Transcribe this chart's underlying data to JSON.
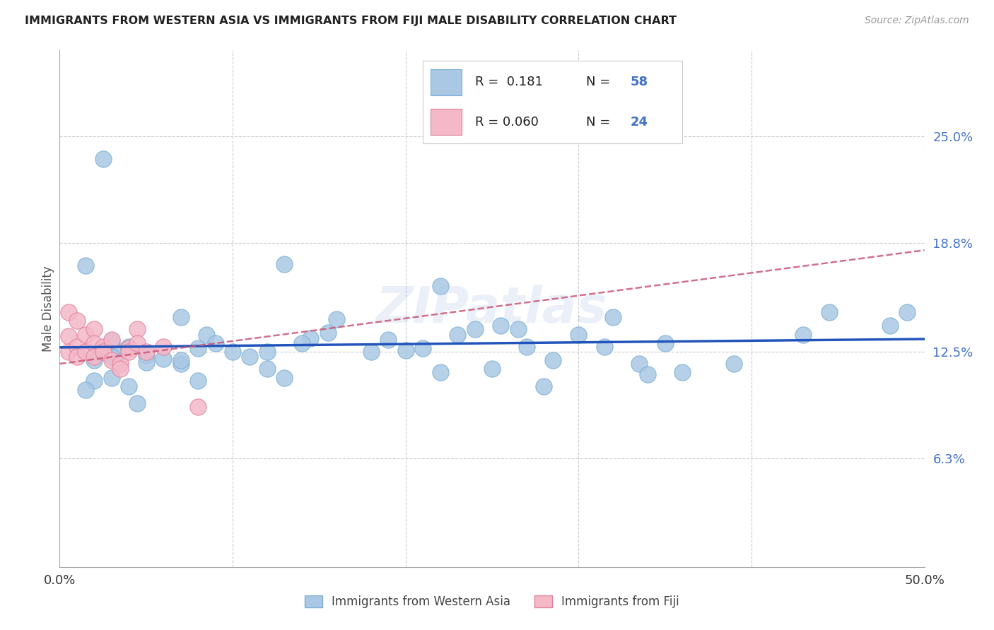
{
  "title": "IMMIGRANTS FROM WESTERN ASIA VS IMMIGRANTS FROM FIJI MALE DISABILITY CORRELATION CHART",
  "source": "Source: ZipAtlas.com",
  "ylabel": "Male Disability",
  "x_min": 0.0,
  "x_max": 0.5,
  "y_min": 0.0,
  "y_max": 0.3,
  "x_ticks": [
    0.0,
    0.1,
    0.2,
    0.3,
    0.4,
    0.5
  ],
  "x_tick_labels": [
    "0.0%",
    "",
    "",
    "",
    "",
    "50.0%"
  ],
  "y_tick_labels_right": [
    "25.0%",
    "18.8%",
    "12.5%",
    "6.3%"
  ],
  "y_tick_values_right": [
    0.25,
    0.188,
    0.125,
    0.063
  ],
  "grid_color": "#cccccc",
  "background_color": "#ffffff",
  "series1_color": "#aac8e4",
  "series1_edge_color": "#7aafd4",
  "series2_color": "#f4b8c8",
  "series2_edge_color": "#e08098",
  "series1_label": "Immigrants from Western Asia",
  "series2_label": "Immigrants from Fiji",
  "series1_R": 0.181,
  "series1_N": 58,
  "series2_R": 0.06,
  "series2_N": 24,
  "trendline1_color": "#2255bb",
  "trendline2_color": "#cc5577",
  "watermark": "ZIPatlas",
  "wa_x": [
    0.025,
    0.13,
    0.03,
    0.035,
    0.05,
    0.22,
    0.04,
    0.08,
    0.21,
    0.015,
    0.03,
    0.07,
    0.12,
    0.155,
    0.16,
    0.03,
    0.06,
    0.085,
    0.145,
    0.19,
    0.24,
    0.255,
    0.265,
    0.3,
    0.32,
    0.35,
    0.445,
    0.43,
    0.49,
    0.02,
    0.05,
    0.09,
    0.11,
    0.14,
    0.18,
    0.2,
    0.23,
    0.27,
    0.285,
    0.315,
    0.335,
    0.36,
    0.39,
    0.02,
    0.04,
    0.07,
    0.08,
    0.1,
    0.13,
    0.22,
    0.28,
    0.34,
    0.015,
    0.07,
    0.25,
    0.48,
    0.045,
    0.12
  ],
  "wa_y": [
    0.237,
    0.176,
    0.131,
    0.125,
    0.123,
    0.163,
    0.128,
    0.127,
    0.127,
    0.175,
    0.122,
    0.118,
    0.115,
    0.136,
    0.144,
    0.11,
    0.121,
    0.135,
    0.133,
    0.132,
    0.138,
    0.14,
    0.138,
    0.135,
    0.145,
    0.13,
    0.148,
    0.135,
    0.148,
    0.12,
    0.119,
    0.13,
    0.122,
    0.13,
    0.125,
    0.126,
    0.135,
    0.128,
    0.12,
    0.128,
    0.118,
    0.113,
    0.118,
    0.108,
    0.105,
    0.12,
    0.108,
    0.125,
    0.11,
    0.113,
    0.105,
    0.112,
    0.103,
    0.145,
    0.115,
    0.14,
    0.095,
    0.125
  ],
  "fiji_x": [
    0.005,
    0.005,
    0.005,
    0.01,
    0.01,
    0.01,
    0.015,
    0.015,
    0.02,
    0.02,
    0.02,
    0.025,
    0.025,
    0.03,
    0.03,
    0.035,
    0.035,
    0.04,
    0.04,
    0.045,
    0.045,
    0.05,
    0.06,
    0.08
  ],
  "fiji_y": [
    0.148,
    0.134,
    0.125,
    0.143,
    0.128,
    0.122,
    0.135,
    0.125,
    0.138,
    0.13,
    0.122,
    0.128,
    0.125,
    0.132,
    0.12,
    0.118,
    0.115,
    0.127,
    0.125,
    0.138,
    0.13,
    0.125,
    0.128,
    0.093
  ]
}
